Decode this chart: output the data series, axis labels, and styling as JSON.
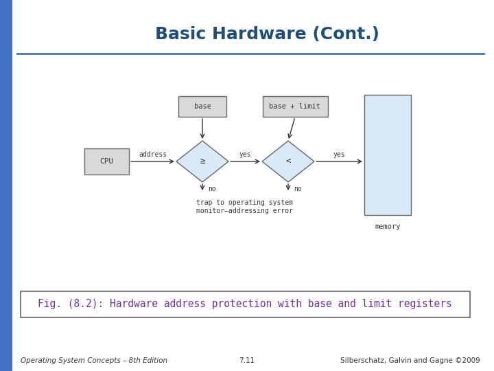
{
  "title": "Basic Hardware (Cont.)",
  "title_color": "#1F4E79",
  "title_fontsize": 18,
  "bg_color": "#FFFFFF",
  "left_bar_color": "#4472C4",
  "caption": "Fig. (8.2): Hardware address protection with base and limit registers",
  "caption_fontsize": 10.5,
  "caption_color": "#7030A0",
  "footer_left": "Operating System Concepts – 8th Edition",
  "footer_center": "7.11",
  "footer_right": "Silberschatz, Galvin and Gagne ©2009",
  "footer_fontsize": 7.5,
  "box_face_color": "#D9D9D9",
  "box_edge_color": "#666666",
  "diamond_face_color": "#DAE9F8",
  "diamond_edge_color": "#666666",
  "memory_face_color": "#DAE9F8",
  "memory_edge_color": "#666666",
  "arrow_color": "#333333",
  "text_color": "#333333",
  "diagram_font": "monospace"
}
